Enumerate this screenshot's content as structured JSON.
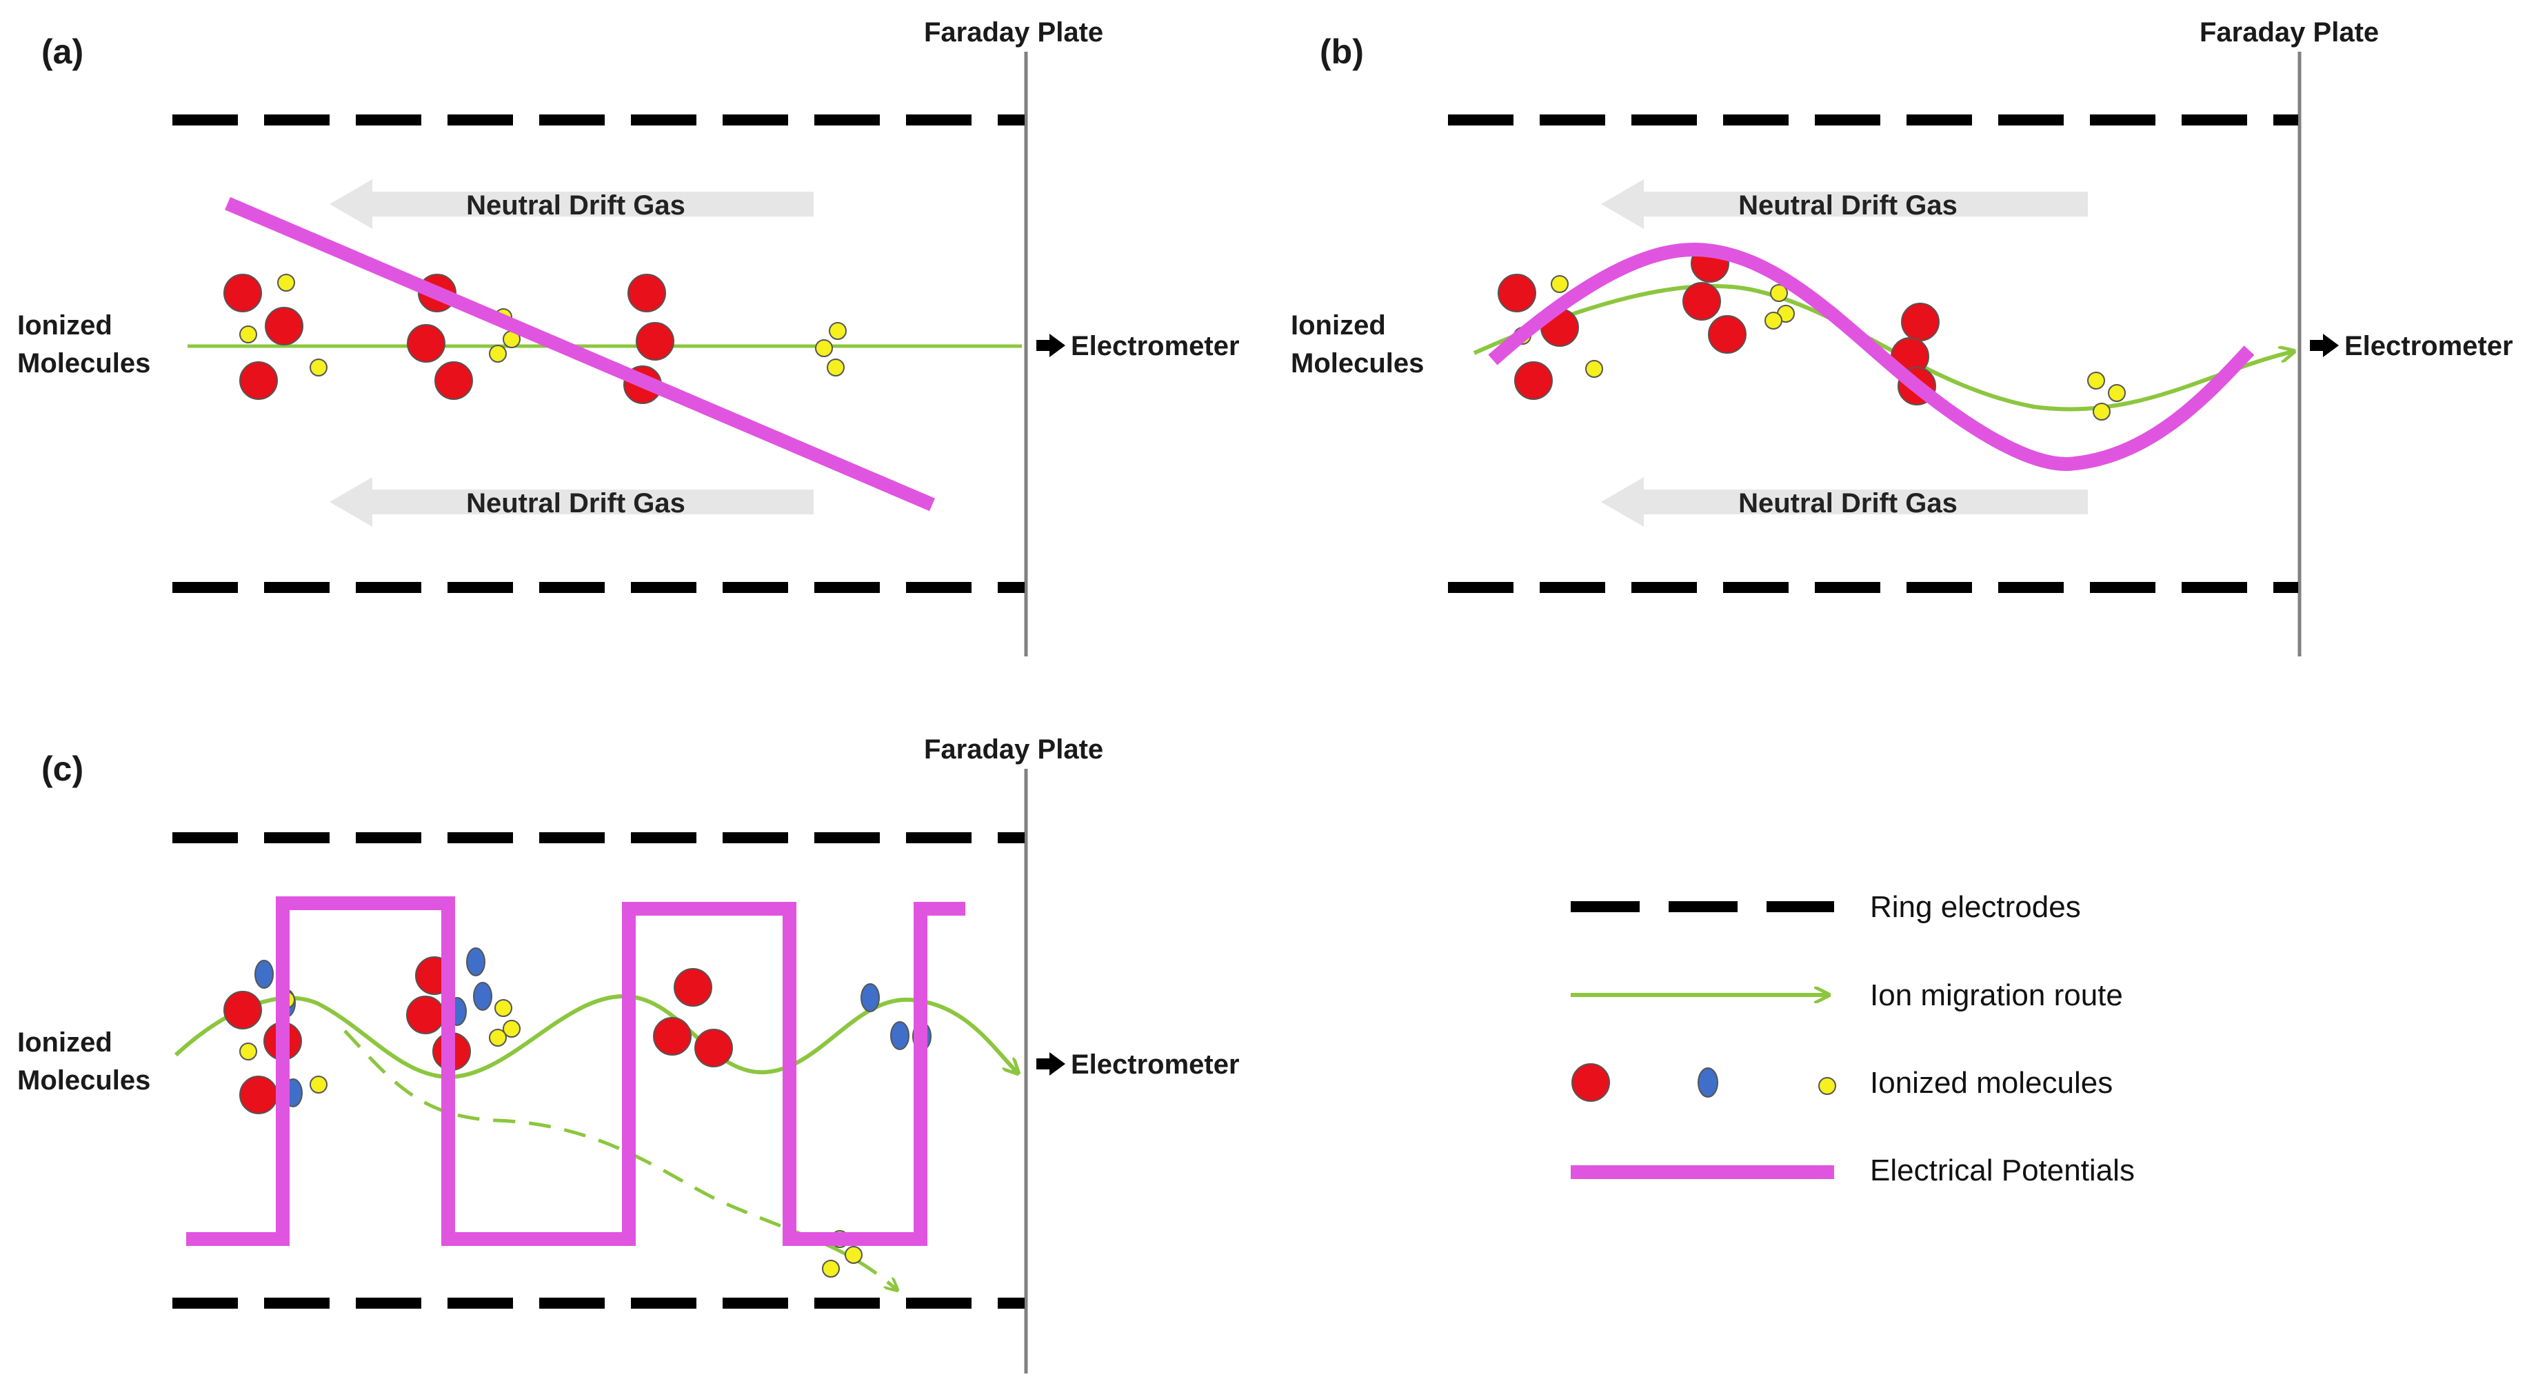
{
  "panels": {
    "a": {
      "label": "(a)",
      "faraday": "Faraday Plate",
      "ionized": [
        "Ionized",
        "Molecules"
      ],
      "drift_top": "Neutral Drift Gas",
      "drift_bottom": "Neutral Drift Gas",
      "electrometer": "Electrometer"
    },
    "b": {
      "label": "(b)",
      "faraday": "Faraday Plate",
      "ionized": [
        "Ionized",
        "Molecules"
      ],
      "drift_top": "Neutral Drift Gas",
      "drift_bottom": "Neutral Drift Gas",
      "electrometer": "Electrometer"
    },
    "c": {
      "label": "(c)",
      "faraday": "Faraday Plate",
      "ionized": [
        "Ionized",
        "Molecules"
      ],
      "electrometer": "Electrometer"
    }
  },
  "legend": {
    "ring": "Ring electrodes",
    "route": "Ion migration route",
    "ions": "Ionized molecules",
    "potential": "Electrical Potentials"
  },
  "colors": {
    "potential": "#e055e0",
    "route": "#8cc63f",
    "ion_red": "#e8101a",
    "ion_blue": "#3f6fc8",
    "ion_yellow": "#f5f01e",
    "electrode": "#000000",
    "plate": "#808080",
    "drift_arrow": "#e6e6e6"
  }
}
